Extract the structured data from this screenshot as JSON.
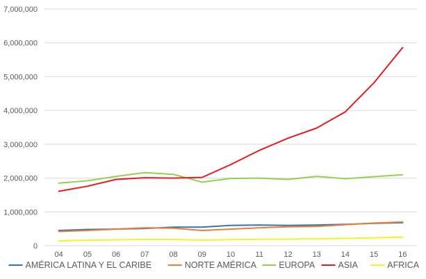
{
  "chart_data": {
    "type": "line",
    "title": "",
    "xlabel": "",
    "ylabel": "",
    "categories": [
      "04",
      "05",
      "06",
      "07",
      "08",
      "09",
      "10",
      "11",
      "12",
      "13",
      "14",
      "15",
      "16"
    ],
    "ylim": [
      0,
      7000000
    ],
    "yticks": [
      0,
      1000000,
      2000000,
      3000000,
      4000000,
      5000000,
      6000000,
      7000000
    ],
    "ytick_labels": [
      "0",
      "1,000,000",
      "2,000,000",
      "3,000,000",
      "4,000,000",
      "5,000,000",
      "6,000,000",
      "7,000,000"
    ],
    "grid": "horizontal",
    "legend_position": "bottom",
    "series": [
      {
        "name": "AMÉRICA LATINA Y EL CARIBE",
        "color": "#2e75b6",
        "values": [
          450000,
          480000,
          490000,
          510000,
          550000,
          550000,
          600000,
          610000,
          600000,
          610000,
          630000,
          660000,
          680000
        ]
      },
      {
        "name": "NORTE AMÉRICA",
        "color": "#ed7d31",
        "values": [
          420000,
          450000,
          490000,
          530000,
          520000,
          450000,
          490000,
          530000,
          560000,
          570000,
          620000,
          670000,
          700000
        ]
      },
      {
        "name": "EUROPA",
        "color": "#92d050",
        "values": [
          1850000,
          1920000,
          2050000,
          2160000,
          2110000,
          1880000,
          1990000,
          2000000,
          1960000,
          2050000,
          1980000,
          2040000,
          2100000
        ]
      },
      {
        "name": "ASIA",
        "color": "#e8191f",
        "values": [
          1610000,
          1760000,
          1960000,
          2010000,
          2000000,
          2020000,
          2400000,
          2820000,
          3180000,
          3480000,
          3960000,
          4820000,
          5860000
        ]
      },
      {
        "name": "AFRICA",
        "color": "#f5f31f",
        "values": [
          145000,
          160000,
          175000,
          185000,
          185000,
          165000,
          180000,
          190000,
          195000,
          205000,
          215000,
          235000,
          250000
        ]
      }
    ]
  }
}
